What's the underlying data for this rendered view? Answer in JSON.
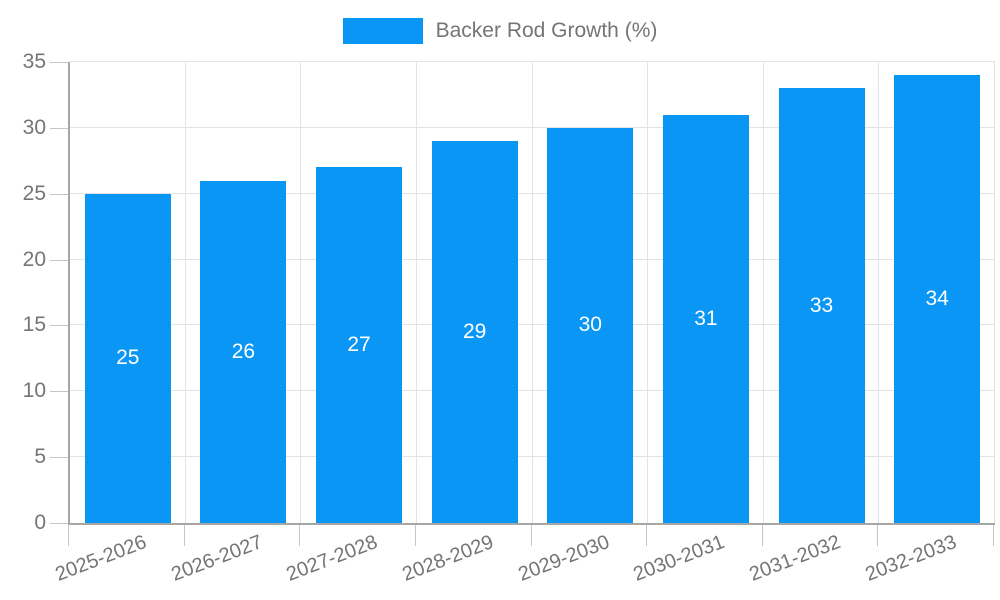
{
  "chart_data": {
    "type": "bar",
    "title": "Backer Rod Growth (%)",
    "legend": {
      "label": "Backer Rod Growth (%)",
      "position": "top"
    },
    "categories": [
      "2025-2026",
      "2026-2027",
      "2027-2028",
      "2028-2029",
      "2029-2030",
      "2030-2031",
      "2031-2032",
      "2032-2033"
    ],
    "values": [
      25,
      26,
      27,
      29,
      30,
      31,
      33,
      34
    ],
    "xlabel": "",
    "ylabel": "",
    "ylim": [
      0,
      35
    ],
    "yticks": [
      0,
      5,
      10,
      15,
      20,
      25,
      30,
      35
    ],
    "grid": "both",
    "value_labels": "centered-white",
    "colors": {
      "bar": "#0a96f5",
      "grid": "#e4e4e4",
      "axis": "#a6a6a6",
      "tick": "#c6c6c6",
      "text": "#757575",
      "value_label": "#ffffff",
      "background": "#ffffff"
    }
  }
}
